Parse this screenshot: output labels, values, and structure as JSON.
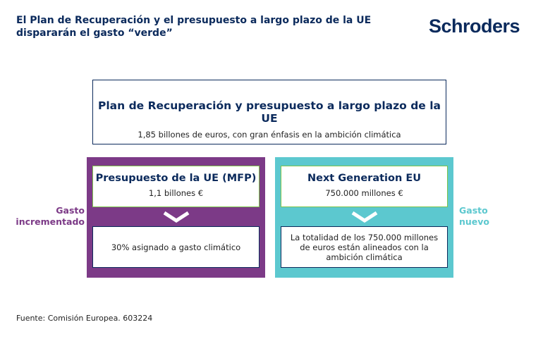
{
  "header": {
    "title": "El Plan de Recuperación y el presupuesto a largo plazo de la UE dispararán el gasto “verde”",
    "logo_text": "Schroders"
  },
  "top_box": {
    "title": "Plan de Recuperación y presupuesto a largo plazo de la UE",
    "subtitle": "1,85 billones de euros, con gran énfasis en la ambición climática"
  },
  "left_panel": {
    "side_label": "Gasto incrementado",
    "title": "Presupuesto de la UE (MFP)",
    "amount": "1,1 billones €",
    "detail": "30% asignado a gasto climático",
    "color": "#7c3a87"
  },
  "right_panel": {
    "side_label": "Gasto nuevo",
    "title": "Next Generation EU",
    "amount": "750.000 millones €",
    "detail": "La totalidad de los 750.000 millones de euros están alineados con la ambición climática",
    "color": "#5cc8cf"
  },
  "footer": {
    "source": "Fuente: Comisión Europea. 603224"
  }
}
